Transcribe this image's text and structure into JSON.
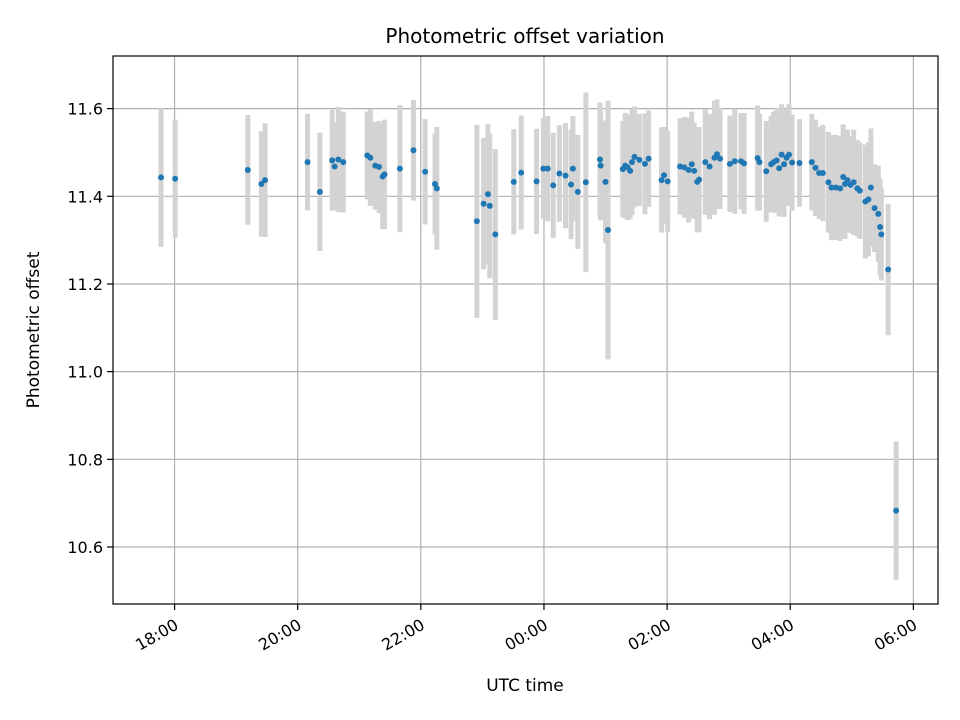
{
  "chart_data": {
    "type": "scatter",
    "title": "Photometric offset variation",
    "xlabel": "UTC time",
    "ylabel": "Photometric offset",
    "x_unit": "UTC time (hours; values ≥24 fall after midnight)",
    "xlim": [
      17.0,
      30.4
    ],
    "ylim": [
      10.47,
      11.72
    ],
    "xticks": [
      {
        "value": 18,
        "label": "18:00"
      },
      {
        "value": 20,
        "label": "20:00"
      },
      {
        "value": 22,
        "label": "22:00"
      },
      {
        "value": 24,
        "label": "00:00"
      },
      {
        "value": 26,
        "label": "02:00"
      },
      {
        "value": 28,
        "label": "04:00"
      },
      {
        "value": 30,
        "label": "06:00"
      }
    ],
    "yticks": [
      {
        "value": 10.6,
        "label": "10.6"
      },
      {
        "value": 10.8,
        "label": "10.8"
      },
      {
        "value": 11.0,
        "label": "11.0"
      },
      {
        "value": 11.2,
        "label": "11.2"
      },
      {
        "value": 11.4,
        "label": "11.4"
      },
      {
        "value": 11.6,
        "label": "11.6"
      }
    ],
    "grid": true,
    "colors": {
      "point": "#1f77b4",
      "errorbar": "#d3d3d3",
      "grid": "#b0b0b0",
      "axes": "#000000"
    },
    "series": [
      {
        "points": [
          [
            17.78,
            11.443,
            0.158
          ],
          [
            18.01,
            11.44,
            0.135
          ],
          [
            19.19,
            11.46,
            0.125
          ],
          [
            19.41,
            11.428,
            0.12
          ],
          [
            19.47,
            11.437,
            0.13
          ],
          [
            20.16,
            11.478,
            0.11
          ],
          [
            20.36,
            11.41,
            0.135
          ],
          [
            20.56,
            11.482,
            0.115
          ],
          [
            20.6,
            11.468,
            0.1
          ],
          [
            20.66,
            11.484,
            0.12
          ],
          [
            20.74,
            11.478,
            0.115
          ],
          [
            21.13,
            11.493,
            0.1
          ],
          [
            21.18,
            11.488,
            0.11
          ],
          [
            21.26,
            11.47,
            0.1
          ],
          [
            21.32,
            11.467,
            0.105
          ],
          [
            21.38,
            11.445,
            0.12
          ],
          [
            21.41,
            11.45,
            0.125
          ],
          [
            21.66,
            11.463,
            0.145
          ],
          [
            21.88,
            11.505,
            0.115
          ],
          [
            22.07,
            11.456,
            0.12
          ],
          [
            22.23,
            11.428,
            0.115
          ],
          [
            22.26,
            11.418,
            0.14
          ],
          [
            22.91,
            11.343,
            0.22
          ],
          [
            23.02,
            11.383,
            0.15
          ],
          [
            23.09,
            11.405,
            0.16
          ],
          [
            23.12,
            11.378,
            0.165
          ],
          [
            23.21,
            11.313,
            0.195
          ],
          [
            23.51,
            11.433,
            0.12
          ],
          [
            23.63,
            11.454,
            0.13
          ],
          [
            23.88,
            11.434,
            0.12
          ],
          [
            23.99,
            11.463,
            0.115
          ],
          [
            24.06,
            11.463,
            0.12
          ],
          [
            24.15,
            11.425,
            0.12
          ],
          [
            24.25,
            11.452,
            0.11
          ],
          [
            24.35,
            11.447,
            0.12
          ],
          [
            24.44,
            11.427,
            0.125
          ],
          [
            24.47,
            11.463,
            0.12
          ],
          [
            24.55,
            11.41,
            0.13
          ],
          [
            24.68,
            11.432,
            0.205
          ],
          [
            24.91,
            11.484,
            0.13
          ],
          [
            24.92,
            11.47,
            0.125
          ],
          [
            25.0,
            11.433,
            0.14
          ],
          [
            25.04,
            11.323,
            0.295
          ],
          [
            25.28,
            11.462,
            0.11
          ],
          [
            25.32,
            11.47,
            0.12
          ],
          [
            25.36,
            11.466,
            0.12
          ],
          [
            25.4,
            11.458,
            0.11
          ],
          [
            25.43,
            11.478,
            0.12
          ],
          [
            25.47,
            11.49,
            0.115
          ],
          [
            25.55,
            11.483,
            0.105
          ],
          [
            25.64,
            11.474,
            0.115
          ],
          [
            25.7,
            11.486,
            0.11
          ],
          [
            25.91,
            11.437,
            0.12
          ],
          [
            25.95,
            11.448,
            0.11
          ],
          [
            26.01,
            11.434,
            0.115
          ],
          [
            26.21,
            11.468,
            0.11
          ],
          [
            26.28,
            11.466,
            0.115
          ],
          [
            26.35,
            11.46,
            0.12
          ],
          [
            26.4,
            11.473,
            0.12
          ],
          [
            26.44,
            11.458,
            0.11
          ],
          [
            26.49,
            11.433,
            0.115
          ],
          [
            26.52,
            11.438,
            0.12
          ],
          [
            26.62,
            11.478,
            0.12
          ],
          [
            26.69,
            11.468,
            0.12
          ],
          [
            26.77,
            11.488,
            0.13
          ],
          [
            26.81,
            11.496,
            0.125
          ],
          [
            26.86,
            11.486,
            0.115
          ],
          [
            27.02,
            11.474,
            0.11
          ],
          [
            27.1,
            11.48,
            0.12
          ],
          [
            27.2,
            11.48,
            0.11
          ],
          [
            27.25,
            11.475,
            0.115
          ],
          [
            27.47,
            11.487,
            0.12
          ],
          [
            27.5,
            11.478,
            0.11
          ],
          [
            27.61,
            11.457,
            0.115
          ],
          [
            27.69,
            11.473,
            0.11
          ],
          [
            27.73,
            11.478,
            0.115
          ],
          [
            27.78,
            11.482,
            0.12
          ],
          [
            27.82,
            11.464,
            0.11
          ],
          [
            27.86,
            11.495,
            0.115
          ],
          [
            27.9,
            11.473,
            0.12
          ],
          [
            27.94,
            11.488,
            0.11
          ],
          [
            27.98,
            11.495,
            0.115
          ],
          [
            28.03,
            11.477,
            0.11
          ],
          [
            28.15,
            11.476,
            0.1
          ],
          [
            28.35,
            11.478,
            0.11
          ],
          [
            28.41,
            11.465,
            0.11
          ],
          [
            28.47,
            11.453,
            0.105
          ],
          [
            28.53,
            11.453,
            0.11
          ],
          [
            28.62,
            11.432,
            0.115
          ],
          [
            28.67,
            11.42,
            0.12
          ],
          [
            28.74,
            11.42,
            0.12
          ],
          [
            28.81,
            11.418,
            0.12
          ],
          [
            28.86,
            11.444,
            0.12
          ],
          [
            28.89,
            11.428,
            0.125
          ],
          [
            28.93,
            11.437,
            0.115
          ],
          [
            28.98,
            11.426,
            0.11
          ],
          [
            29.03,
            11.432,
            0.12
          ],
          [
            29.09,
            11.418,
            0.11
          ],
          [
            29.13,
            11.413,
            0.11
          ],
          [
            29.22,
            11.388,
            0.13
          ],
          [
            29.27,
            11.393,
            0.13
          ],
          [
            29.31,
            11.42,
            0.135
          ],
          [
            29.37,
            11.373,
            0.1
          ],
          [
            29.43,
            11.36,
            0.11
          ],
          [
            29.46,
            11.33,
            0.11
          ],
          [
            29.48,
            11.313,
            0.105
          ],
          [
            29.59,
            11.233,
            0.15
          ],
          [
            29.72,
            10.683,
            0.158
          ]
        ]
      }
    ]
  }
}
